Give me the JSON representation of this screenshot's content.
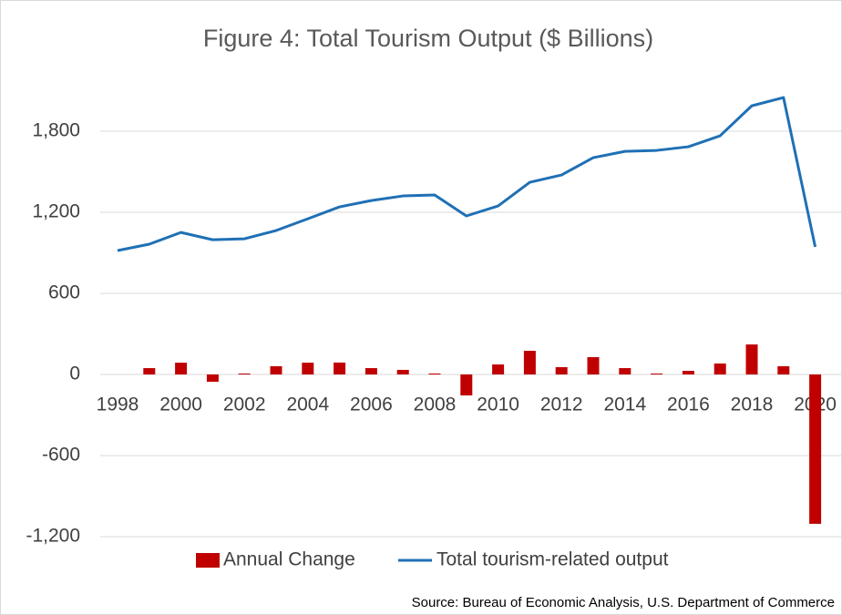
{
  "chart_data": {
    "type": "bar",
    "title": "Figure 4: Total Tourism Output ($ Billions)",
    "categories": [
      "1998",
      null,
      "2000",
      null,
      "2002",
      null,
      "2004",
      null,
      "2006",
      null,
      "2008",
      null,
      "2010",
      null,
      "2012",
      null,
      "2014",
      null,
      "2016",
      null,
      "2018",
      null,
      "2020"
    ],
    "series": [
      {
        "name": "Annual Change",
        "type": "bar",
        "color": "#c00000",
        "values": [
          null,
          47,
          87,
          -54,
          7,
          61,
          87,
          88,
          47,
          34,
          7,
          -155,
          74,
          175,
          54,
          128,
          47,
          7,
          27,
          81,
          222,
          61,
          -1105
        ]
      },
      {
        "name": "Total tourism-related output",
        "type": "line",
        "color": "#1f70b5",
        "values": [
          917,
          964,
          1051,
          997,
          1004,
          1065,
          1152,
          1240,
          1287,
          1321,
          1328,
          1173,
          1247,
          1422,
          1476,
          1604,
          1651,
          1658,
          1685,
          1766,
          1988,
          2049,
          944
        ]
      }
    ],
    "ylim": [
      -1200,
      2150
    ],
    "yticks": [
      {
        "value": -1200,
        "label": "-1,200"
      },
      -600,
      0,
      600,
      {
        "value": 1200,
        "label": "1,200"
      },
      {
        "value": 1800,
        "label": "1,800"
      }
    ],
    "grid": true,
    "legend": "bottom",
    "source": "Source: Bureau of Economic Analysis, U.S. Department of Commerce"
  }
}
